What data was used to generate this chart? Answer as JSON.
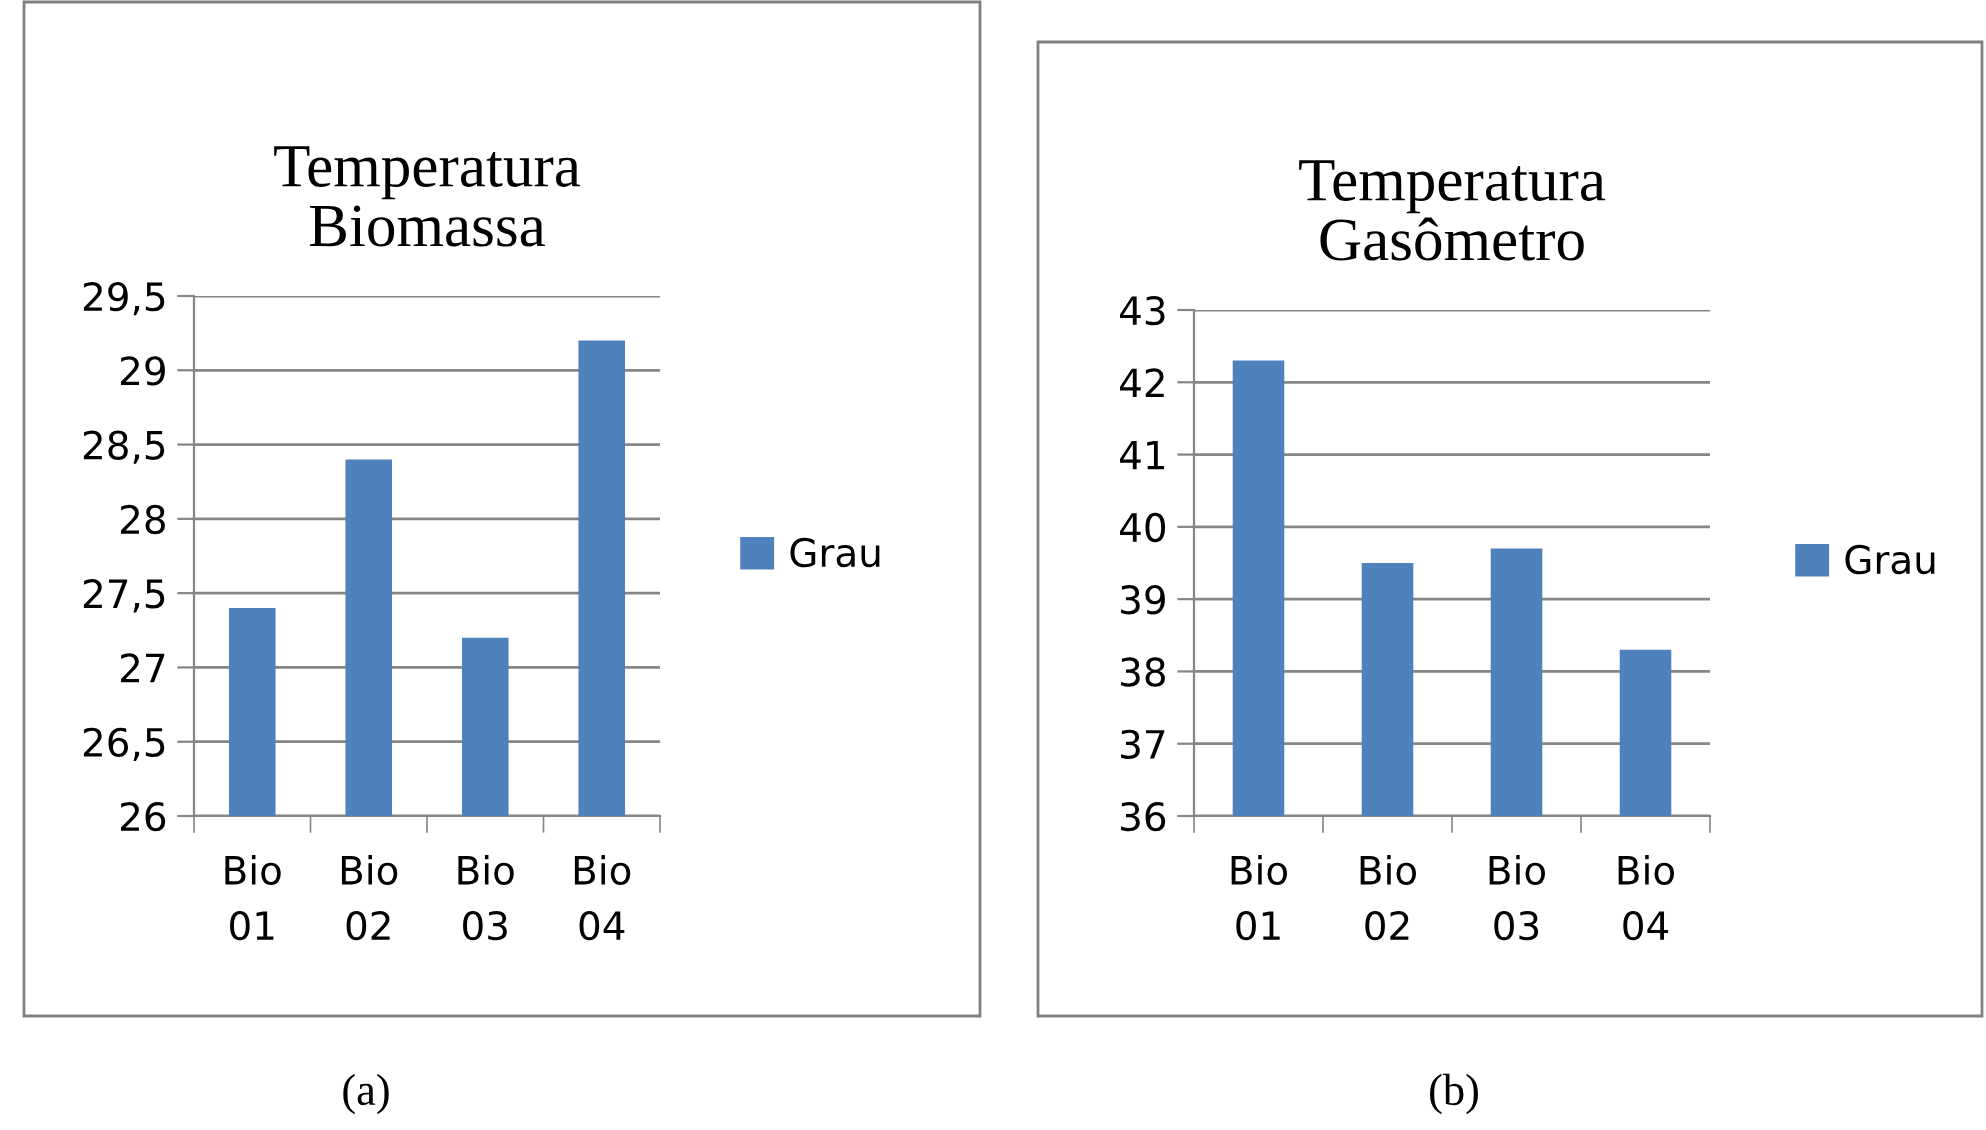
{
  "chart_data": [
    {
      "type": "bar",
      "title": "Temperatura\nBiomassa",
      "categories": [
        "Bio 01",
        "Bio 02",
        "Bio 03",
        "Bio 04"
      ],
      "series": [
        {
          "name": "Grau",
          "color": "#4f81bd",
          "values": [
            27.4,
            28.4,
            27.2,
            29.2
          ]
        }
      ],
      "ylim": [
        26,
        29.5
      ],
      "yticks": [
        26,
        {
          "value": 26.5,
          "label": "26,5"
        },
        27,
        {
          "value": 27.5,
          "label": "27,5"
        },
        28,
        {
          "value": 28.5,
          "label": "28,5"
        },
        29,
        {
          "value": 29.5,
          "label": "29,5"
        }
      ],
      "grid": "y",
      "legend": "right",
      "annotations": [
        "(a)"
      ]
    },
    {
      "type": "bar",
      "title": "Temperatura\nGasômetro",
      "categories": [
        "Bio 01",
        "Bio 02",
        "Bio 03",
        "Bio 04"
      ],
      "series": [
        {
          "name": "Grau",
          "color": "#4f81bd",
          "values": [
            42.3,
            39.5,
            39.7,
            38.3
          ]
        }
      ],
      "ylim": [
        36,
        43
      ],
      "yticks": [
        36,
        37,
        38,
        39,
        40,
        41,
        42,
        43
      ],
      "grid": "y",
      "legend": "right",
      "annotations": [
        "(b)"
      ]
    }
  ]
}
